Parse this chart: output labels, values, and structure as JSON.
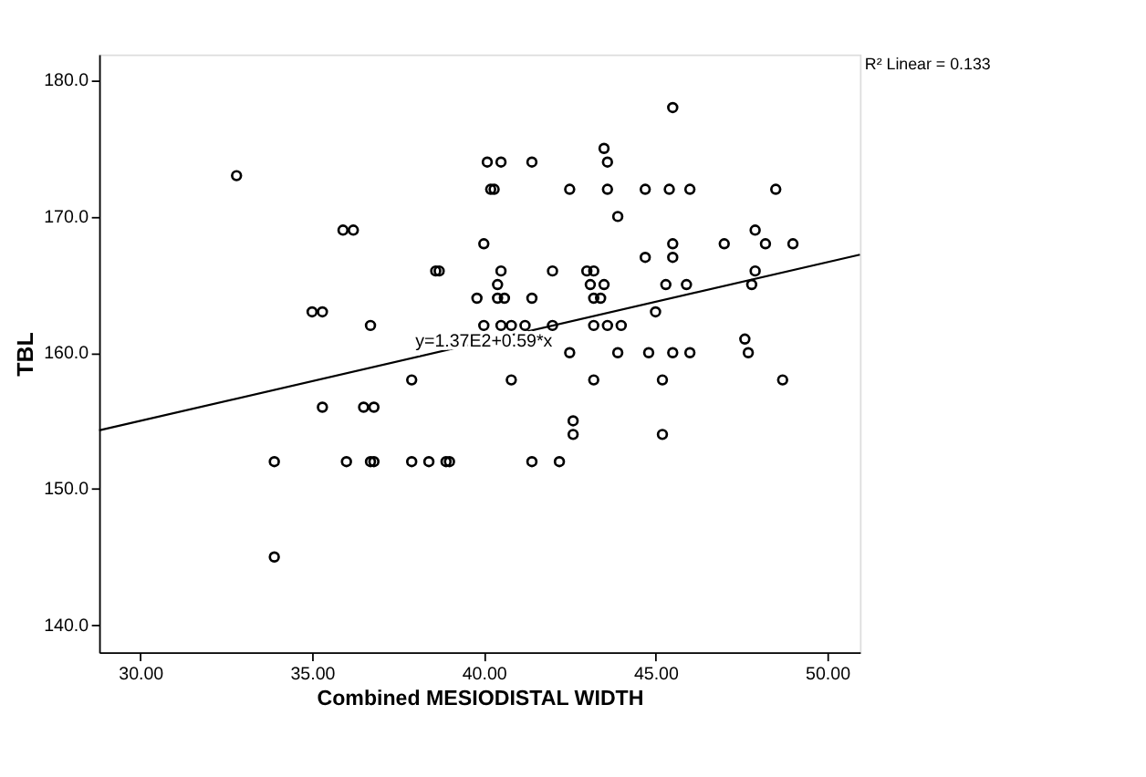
{
  "chart_data": {
    "type": "scatter",
    "xlabel": "Combined MESIODISTAL WIDTH",
    "ylabel": "TBL",
    "xlim": [
      28.8,
      50.95
    ],
    "ylim": [
      138,
      181.9
    ],
    "xticks": [
      {
        "value": 30,
        "label": "30.00"
      },
      {
        "value": 35,
        "label": "35.00"
      },
      {
        "value": 40,
        "label": "40.00"
      },
      {
        "value": 45,
        "label": "45.00"
      },
      {
        "value": 50,
        "label": "50.00"
      }
    ],
    "yticks": [
      {
        "value": 140,
        "label": "140.0"
      },
      {
        "value": 150,
        "label": "150.0"
      },
      {
        "value": 160,
        "label": "160.0"
      },
      {
        "value": 170,
        "label": "170.0"
      },
      {
        "value": 180,
        "label": "180.0"
      }
    ],
    "grid": false,
    "marker": "circle",
    "annotations": [
      {
        "text": "y=1.37E2+0.59*x",
        "x": 40,
        "y": 160.8
      },
      "R² Linear = 0.133"
    ],
    "series": [
      {
        "color": "#000000",
        "x": [
          32.8,
          33.9,
          33.9,
          35.0,
          35.3,
          35.3,
          35.9,
          36.2,
          36.0,
          36.5,
          36.8,
          36.7,
          36.7,
          36.8,
          37.9,
          37.9,
          38.4,
          38.6,
          38.7,
          38.9,
          39.0,
          39.8,
          40.0,
          40.0,
          40.1,
          40.5,
          40.2,
          40.3,
          40.4,
          40.4,
          40.6,
          40.5,
          40.5,
          40.8,
          40.8,
          41.2,
          41.4,
          41.4,
          41.4,
          42.0,
          42.0,
          42.2,
          42.5,
          42.5,
          42.6,
          42.6,
          43.0,
          43.2,
          43.1,
          43.2,
          43.4,
          43.2,
          43.2,
          43.5,
          43.5,
          43.6,
          43.6,
          43.6,
          43.9,
          43.9,
          44.0,
          44.7,
          44.7,
          44.8,
          45.0,
          45.2,
          45.2,
          45.3,
          45.4,
          45.5,
          45.5,
          45.5,
          45.5,
          46.0,
          45.9,
          46.0,
          47.0,
          47.6,
          47.7,
          47.8,
          47.9,
          47.9,
          48.2,
          48.5,
          48.7,
          49.0
        ],
        "values": [
          173,
          152,
          145,
          163,
          163,
          156,
          169,
          169,
          152,
          156,
          156,
          162,
          152,
          152,
          158,
          152,
          152,
          166,
          166,
          152,
          152,
          164,
          168,
          162,
          174,
          174,
          172,
          172,
          165,
          164,
          164,
          166,
          162,
          162,
          158,
          162,
          152,
          174,
          164,
          166,
          162,
          152,
          160,
          172,
          155,
          154,
          166,
          166,
          165,
          164,
          164,
          162,
          158,
          165,
          175,
          174,
          172,
          162,
          170,
          160,
          162,
          172,
          167,
          160,
          163,
          158,
          154,
          165,
          172,
          167,
          168,
          178,
          160,
          160,
          165,
          172,
          168,
          161,
          160,
          165,
          169,
          166,
          168,
          172,
          158,
          168
        ]
      },
      {
        "type": "line",
        "marker": "none",
        "line_style": "solid",
        "color": "#000000",
        "x": [
          28.8,
          50.95
        ],
        "values": [
          154.3,
          167.2
        ]
      }
    ]
  }
}
